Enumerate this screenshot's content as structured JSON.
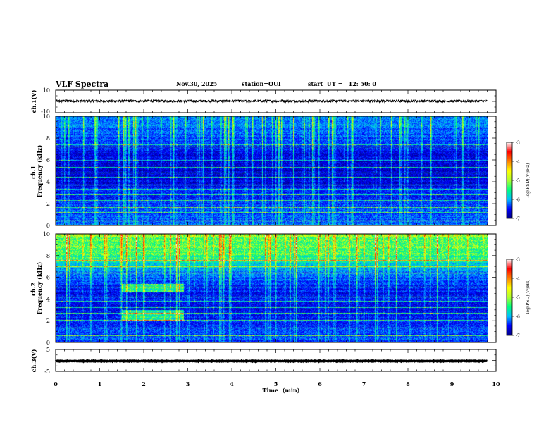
{
  "header": {
    "title": "VLF Spectra",
    "date": "Nov.30, 2025",
    "station": "station=OUI",
    "start_time": "start  UT =   12: 50: 0"
  },
  "chart_data": [
    {
      "id": "ch1_waveform",
      "type": "line",
      "ylabel": "ch.1(V)",
      "ylim": [
        -10,
        10
      ],
      "yticks": [
        "10",
        "-10"
      ],
      "xlim": [
        0,
        10
      ],
      "signal": {
        "mean": 0.3,
        "amplitude": 1.0,
        "x_end": 9.8
      },
      "trace_color": "#000000"
    },
    {
      "id": "ch1_spectrogram",
      "type": "heatmap",
      "ylabel": "ch.1\nFrequency  (kHz)",
      "ylabel_lines": [
        "ch.1",
        "Frequency  (kHz)"
      ],
      "ylim": [
        0,
        10
      ],
      "yticks": [
        "0",
        "2",
        "4",
        "6",
        "8",
        "10"
      ],
      "xlim": [
        0,
        10
      ],
      "data_x_end": 9.8,
      "profile_frequency_khz": [
        0,
        1,
        2,
        3,
        4,
        5,
        6,
        7,
        8,
        9,
        10
      ],
      "profile_log_psd": [
        -5.8,
        -6.0,
        -6.1,
        -6.2,
        -6.45,
        -6.5,
        -6.45,
        -6.25,
        -6.0,
        -5.8,
        -5.6
      ],
      "transients": {
        "count": 95,
        "level": -4.8
      },
      "tones_khz": [
        0.4,
        1.2,
        1.6,
        2.3,
        2.8,
        3.3,
        3.7,
        4.4,
        4.8,
        5.3,
        6.0,
        7.2,
        7.4
      ],
      "colorbar": {
        "label": "log(PSD)(V²/Hz)",
        "range": [
          -7,
          -3
        ],
        "ticks": [
          "-7",
          "-6",
          "-5",
          "-4",
          "-3"
        ],
        "colors": [
          "#000080",
          "#0000ff",
          "#00bfff",
          "#00ff7f",
          "#adff2f",
          "#ffff00",
          "#ff8000",
          "#ff0000",
          "#ffffff"
        ]
      }
    },
    {
      "id": "ch2_spectrogram",
      "type": "heatmap",
      "ylabel": "ch.2\nFrequency  (kHz)",
      "ylabel_lines": [
        "ch.2",
        "Frequency  (kHz)"
      ],
      "ylim": [
        0,
        10
      ],
      "yticks": [
        "0",
        "2",
        "4",
        "6",
        "8",
        "10"
      ],
      "xlim": [
        0,
        10
      ],
      "data_x_end": 9.8,
      "profile_frequency_khz": [
        0,
        1,
        2,
        3,
        4,
        5,
        6,
        7,
        8,
        9,
        10
      ],
      "profile_log_psd": [
        -6.0,
        -6.1,
        -6.2,
        -6.35,
        -6.3,
        -6.2,
        -5.9,
        -5.4,
        -4.9,
        -4.7,
        -4.6
      ],
      "feature_note": "enhanced emission near 2.5 kHz and 5 kHz during minutes 1.5-2.9",
      "transients": {
        "count": 75,
        "level": -4.8
      },
      "tones_khz": [
        0.6,
        1.3,
        2.0,
        2.7,
        3.2,
        3.8,
        4.2,
        5.1,
        6.4,
        7.0,
        7.6
      ],
      "colorbar": {
        "label": "log(PSD)(V²/Hz)",
        "range": [
          -7,
          -3
        ],
        "ticks": [
          "-7",
          "-6",
          "-5",
          "-4",
          "-3"
        ],
        "colors": [
          "#000080",
          "#0000ff",
          "#00bfff",
          "#00ff7f",
          "#adff2f",
          "#ffff00",
          "#ff8000",
          "#ff0000",
          "#ffffff"
        ]
      }
    },
    {
      "id": "ch3_waveform",
      "type": "line",
      "ylabel": "ch.3(V)",
      "ylim": [
        -5,
        5
      ],
      "yticks": [
        "5",
        "-5"
      ],
      "xlim": [
        0,
        10
      ],
      "signal": {
        "mean": -0.3,
        "amplitude": 0.12,
        "x_end": 9.8
      },
      "trace_color": "#000000"
    }
  ],
  "xaxis": {
    "label": "Time  (min)",
    "ticks": [
      "0",
      "1",
      "2",
      "3",
      "4",
      "5",
      "6",
      "7",
      "8",
      "9",
      "10"
    ],
    "range": [
      0,
      10
    ]
  }
}
